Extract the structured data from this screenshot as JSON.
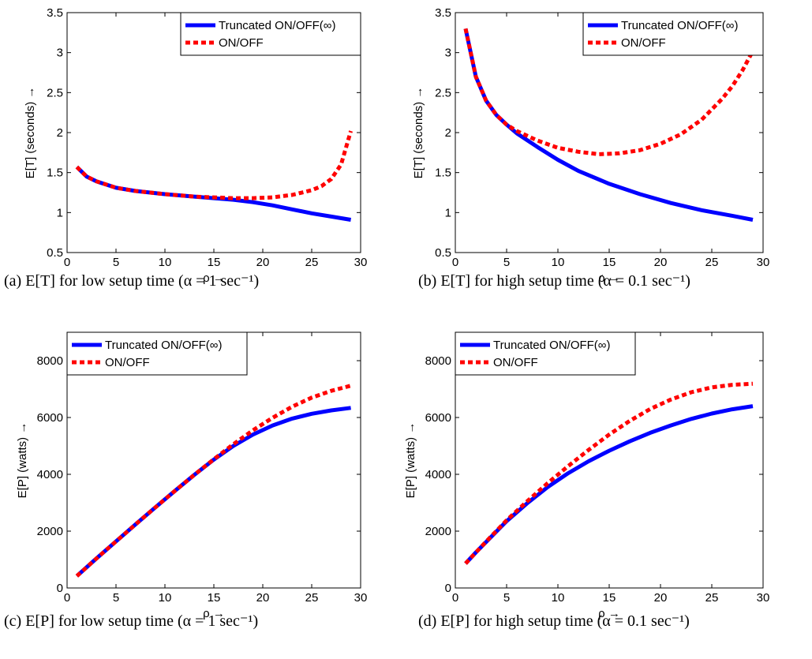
{
  "chart_data": [
    {
      "type": "line",
      "caption": "(a) E[T] for low setup time (α = 1 sec⁻¹)",
      "xlabel": "ρ →",
      "ylabel": "E[T] (seconds) →",
      "xlim": [
        0,
        30
      ],
      "ylim": [
        0.5,
        3.5
      ],
      "xticks": [
        "0",
        "5",
        "10",
        "15",
        "20",
        "25",
        "30"
      ],
      "yticks": [
        "0.5",
        "1",
        "1.5",
        "2",
        "2.5",
        "3",
        "3.5"
      ],
      "legend_position": "top-right",
      "grid": false,
      "series": [
        {
          "name": "Truncated ON/OFF(∞)",
          "color": "#0000ff",
          "style": "solid",
          "x": [
            1,
            2,
            3,
            5,
            7,
            10,
            13,
            15,
            17,
            19,
            21,
            23,
            25,
            27,
            29
          ],
          "y": [
            1.57,
            1.45,
            1.39,
            1.31,
            1.27,
            1.23,
            1.2,
            1.18,
            1.16,
            1.13,
            1.09,
            1.04,
            0.99,
            0.95,
            0.91
          ]
        },
        {
          "name": "ON/OFF",
          "color": "#ff0000",
          "style": "dashed",
          "x": [
            1,
            2,
            3,
            5,
            7,
            10,
            13,
            15,
            17,
            19,
            21,
            23,
            25,
            26,
            27,
            28,
            29
          ],
          "y": [
            1.57,
            1.45,
            1.39,
            1.31,
            1.27,
            1.23,
            1.2,
            1.19,
            1.18,
            1.18,
            1.19,
            1.22,
            1.28,
            1.33,
            1.42,
            1.6,
            2.02
          ]
        }
      ]
    },
    {
      "type": "line",
      "caption": "(b) E[T] for high setup time (α = 0.1 sec⁻¹)",
      "xlabel": "ρ →",
      "ylabel": "E[T] (seconds) →",
      "xlim": [
        0,
        30
      ],
      "ylim": [
        0.5,
        3.5
      ],
      "xticks": [
        "0",
        "5",
        "10",
        "15",
        "20",
        "25",
        "30"
      ],
      "yticks": [
        "0.5",
        "1",
        "1.5",
        "2",
        "2.5",
        "3",
        "3.5"
      ],
      "legend_position": "top-right",
      "grid": false,
      "series": [
        {
          "name": "Truncated ON/OFF(∞)",
          "color": "#0000ff",
          "style": "solid",
          "x": [
            1,
            2,
            3,
            4,
            5,
            6,
            8,
            10,
            12,
            15,
            18,
            21,
            24,
            27,
            29
          ],
          "y": [
            3.3,
            2.7,
            2.4,
            2.22,
            2.1,
            1.99,
            1.82,
            1.66,
            1.52,
            1.36,
            1.23,
            1.12,
            1.03,
            0.96,
            0.91
          ]
        },
        {
          "name": "ON/OFF",
          "color": "#ff0000",
          "style": "dashed",
          "x": [
            1,
            2,
            3,
            4,
            5,
            6,
            8,
            10,
            12,
            14,
            16,
            18,
            20,
            22,
            24,
            26,
            27,
            28,
            29
          ],
          "y": [
            3.3,
            2.7,
            2.4,
            2.22,
            2.1,
            2.02,
            1.9,
            1.81,
            1.76,
            1.73,
            1.74,
            1.78,
            1.86,
            1.98,
            2.16,
            2.42,
            2.58,
            2.78,
            3.02
          ]
        }
      ]
    },
    {
      "type": "line",
      "caption": "(c) E[P] for low setup time (α = 1 sec⁻¹)",
      "xlabel": "ρ →",
      "ylabel": "E[P] (watts) →",
      "xlim": [
        0,
        30
      ],
      "ylim": [
        0,
        9000
      ],
      "xticks": [
        "0",
        "5",
        "10",
        "15",
        "20",
        "25",
        "30"
      ],
      "yticks": [
        "0",
        "2000",
        "4000",
        "6000",
        "8000"
      ],
      "legend_position": "top-left",
      "grid": false,
      "series": [
        {
          "name": "Truncated ON/OFF(∞)",
          "color": "#0000ff",
          "style": "solid",
          "x": [
            1,
            3,
            5,
            7,
            9,
            11,
            13,
            15,
            17,
            19,
            21,
            23,
            25,
            27,
            29
          ],
          "y": [
            420,
            1040,
            1640,
            2240,
            2830,
            3410,
            3980,
            4520,
            5000,
            5400,
            5720,
            5960,
            6130,
            6250,
            6340
          ]
        },
        {
          "name": "ON/OFF",
          "color": "#ff0000",
          "style": "dashed",
          "x": [
            1,
            3,
            5,
            7,
            9,
            11,
            13,
            15,
            17,
            19,
            21,
            23,
            25,
            27,
            29
          ],
          "y": [
            420,
            1040,
            1640,
            2240,
            2830,
            3410,
            3980,
            4530,
            5060,
            5550,
            5990,
            6380,
            6700,
            6940,
            7120
          ]
        }
      ]
    },
    {
      "type": "line",
      "caption": "(d) E[P] for high setup time (α = 0.1 sec⁻¹)",
      "xlabel": "ρ →",
      "ylabel": "E[P] (watts) →",
      "xlim": [
        0,
        30
      ],
      "ylim": [
        0,
        9000
      ],
      "xticks": [
        "0",
        "5",
        "10",
        "15",
        "20",
        "25",
        "30"
      ],
      "yticks": [
        "0",
        "2000",
        "4000",
        "6000",
        "8000"
      ],
      "legend_position": "top-left",
      "grid": false,
      "series": [
        {
          "name": "Truncated ON/OFF(∞)",
          "color": "#0000ff",
          "style": "solid",
          "x": [
            1,
            2,
            3,
            5,
            7,
            9,
            11,
            13,
            15,
            17,
            19,
            21,
            23,
            25,
            27,
            29
          ],
          "y": [
            860,
            1250,
            1620,
            2350,
            2980,
            3550,
            4040,
            4460,
            4830,
            5160,
            5460,
            5720,
            5950,
            6140,
            6290,
            6400
          ]
        },
        {
          "name": "ON/OFF",
          "color": "#ff0000",
          "style": "dashed",
          "x": [
            1,
            2,
            3,
            5,
            7,
            9,
            11,
            13,
            15,
            17,
            19,
            21,
            23,
            25,
            27,
            29
          ],
          "y": [
            860,
            1250,
            1630,
            2380,
            3050,
            3690,
            4290,
            4860,
            5400,
            5880,
            6300,
            6630,
            6890,
            7060,
            7150,
            7190
          ]
        }
      ]
    }
  ]
}
